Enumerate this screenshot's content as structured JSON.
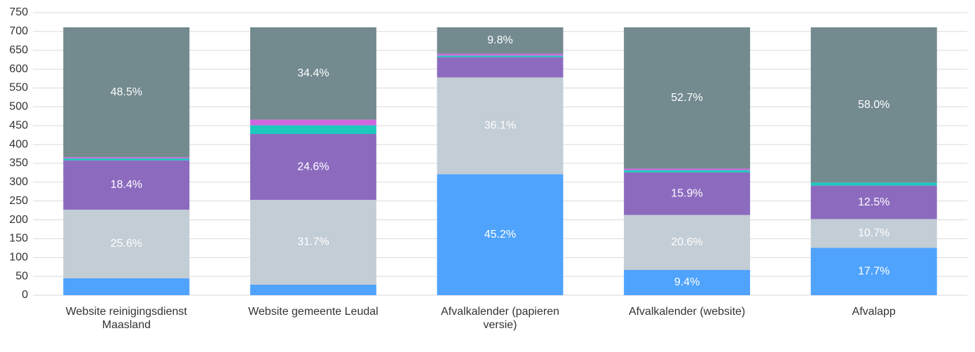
{
  "chart_data": {
    "type": "stacked_bar",
    "categories": [
      "Website reinigingsdienst Maasland",
      "Website gemeente Leudal",
      "Afvalkalender (papieren versie)",
      "Afvalkalender (website)",
      "Afvalapp"
    ],
    "series": [
      {
        "color": "#4fa3fc",
        "values": [
          45,
          28,
          321,
          67,
          126
        ],
        "value_labels": [
          null,
          null,
          "45.2%",
          "9.4%",
          "17.7%"
        ]
      },
      {
        "color": "#c3cdd5",
        "values": [
          182,
          225,
          257,
          146,
          76
        ],
        "value_labels": [
          "25.6%",
          "31.7%",
          "36.1%",
          "20.6%",
          "10.7%"
        ]
      },
      {
        "color": "#8c6bbf",
        "values": [
          131,
          175,
          54,
          113,
          89
        ],
        "value_labels": [
          "18.4%",
          "24.6%",
          null,
          "15.9%",
          "12.5%"
        ]
      },
      {
        "color": "#1ec8bd",
        "values": [
          5,
          23,
          4,
          6,
          8
        ],
        "value_labels": [
          null,
          null,
          null,
          null,
          null
        ]
      },
      {
        "color": "#d066e0",
        "values": [
          3,
          15,
          5,
          4,
          0
        ],
        "value_labels": [
          null,
          null,
          null,
          null,
          null
        ]
      },
      {
        "color": "#738a8f",
        "values": [
          345,
          245,
          70,
          375,
          412
        ],
        "value_labels": [
          "48.5%",
          "34.4%",
          "9.8%",
          "52.7%",
          "58.0%"
        ]
      }
    ],
    "ylim": [
      0,
      750
    ],
    "yticks": [
      0,
      50,
      100,
      150,
      200,
      250,
      300,
      350,
      400,
      450,
      500,
      550,
      600,
      650,
      700,
      750
    ],
    "grid": true
  }
}
